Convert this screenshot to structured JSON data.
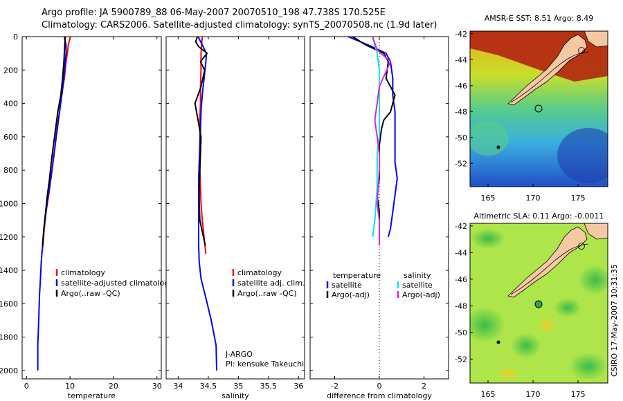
{
  "header": {
    "line1": "Argo profile: JA 5900789_88 06-May-2007 20070510_198 47.738S 170.525E",
    "line2": "Climatology: CARS2006. Satellite-adjusted climatology: synTS_20070508.nc (1.9d later)"
  },
  "side_stamp": "CSIRO 17-May-2007 10:31:35",
  "colors": {
    "clim": "#ff0000",
    "sat": "#0000ff",
    "argo": "#000000",
    "sat_sal": "#00e8e8",
    "argo_sal": "#e020e0"
  },
  "chart_data": [
    {
      "type": "line",
      "name": "temperature",
      "xlabel": "temperature",
      "xlim": [
        -1,
        31
      ],
      "ylim": [
        0,
        2050
      ],
      "xticks": [
        "0",
        "10",
        "20",
        "30"
      ],
      "xtick_values": [
        0,
        10,
        20,
        30
      ],
      "yticks": [
        "0",
        "200",
        "400",
        "600",
        "800",
        "1000",
        "1200",
        "1400",
        "1600",
        "1800",
        "2000"
      ],
      "ytick_values": [
        0,
        200,
        400,
        600,
        800,
        1000,
        1200,
        1400,
        1600,
        1800,
        2000
      ],
      "legend": [
        "climatology",
        "satellite-adjusted climatology",
        "Argo(..raw -QC)"
      ],
      "series": [
        {
          "name": "climatology",
          "color": "#ff0000",
          "x": [
            10.1,
            9.6,
            9.4,
            9.1,
            8.7,
            8.1,
            7.6,
            7.0,
            6.6,
            6.1,
            5.6,
            5.1,
            4.5,
            4.1,
            3.8,
            3.5
          ],
          "y": [
            0,
            50,
            100,
            150,
            250,
            350,
            450,
            550,
            650,
            750,
            850,
            950,
            1050,
            1150,
            1250,
            1300
          ]
        },
        {
          "name": "satellite",
          "color": "#0000ff",
          "x": [
            8.7,
            9.1,
            9.1,
            8.9,
            8.6,
            8.1,
            7.6,
            7.1,
            6.6,
            6.1,
            5.6,
            5.0,
            4.5,
            4.0,
            3.7,
            3.4,
            3.2,
            3.0,
            2.8,
            2.6,
            2.6
          ],
          "y": [
            0,
            50,
            100,
            150,
            250,
            350,
            450,
            550,
            650,
            750,
            850,
            950,
            1050,
            1150,
            1250,
            1350,
            1450,
            1550,
            1700,
            1850,
            2000
          ]
        },
        {
          "name": "argo",
          "color": "#000000",
          "x": [
            8.9,
            8.8,
            8.7,
            8.6,
            8.3,
            7.9,
            7.2,
            6.7,
            6.2,
            5.7,
            5.3,
            4.8,
            4.4,
            4.0,
            3.7
          ],
          "y": [
            0,
            50,
            100,
            150,
            250,
            350,
            450,
            550,
            650,
            750,
            850,
            950,
            1050,
            1150,
            1250
          ]
        }
      ]
    },
    {
      "type": "line",
      "name": "salinity",
      "xlabel": "salinity",
      "xlim": [
        33.8,
        36.1
      ],
      "ylim": [
        0,
        2050
      ],
      "xticks": [
        "34",
        "34.5",
        "35",
        "35.5",
        "36"
      ],
      "xtick_values": [
        34,
        34.5,
        35,
        35.5,
        36
      ],
      "legend": [
        "climatology",
        "satellite adj. clim.",
        "Argo(..raw -QC)"
      ],
      "annotation": [
        "J-ARGO",
        "PI: kensuke Takeuchi"
      ],
      "series": [
        {
          "name": "climatology",
          "color": "#ff0000",
          "x": [
            34.4,
            34.39,
            34.38,
            34.38,
            34.37,
            34.37,
            34.36,
            34.36,
            34.36,
            34.36,
            34.37,
            34.38,
            34.4,
            34.43,
            34.46
          ],
          "y": [
            0,
            50,
            100,
            200,
            300,
            400,
            500,
            600,
            700,
            800,
            900,
            1000,
            1100,
            1200,
            1300
          ]
        },
        {
          "name": "satellite",
          "color": "#0000ff",
          "x": [
            34.33,
            34.4,
            34.47,
            34.46,
            34.43,
            34.4,
            34.38,
            34.37,
            34.36,
            34.35,
            34.34,
            34.34,
            34.34,
            34.34,
            34.34,
            34.35,
            34.38,
            34.45,
            34.55,
            34.63,
            34.64
          ],
          "y": [
            0,
            50,
            100,
            150,
            250,
            350,
            450,
            550,
            650,
            750,
            850,
            950,
            1050,
            1150,
            1250,
            1350,
            1450,
            1550,
            1700,
            1850,
            2000
          ]
        },
        {
          "name": "argo",
          "color": "#000000",
          "x": [
            34.32,
            34.29,
            34.34,
            34.48,
            34.37,
            34.44,
            34.38,
            34.28,
            34.33,
            34.38,
            34.37,
            34.36,
            34.35,
            34.35,
            34.36,
            34.39,
            34.42,
            34.45
          ],
          "y": [
            0,
            30,
            60,
            100,
            150,
            200,
            300,
            400,
            500,
            600,
            700,
            800,
            900,
            1000,
            1100,
            1150,
            1200,
            1250
          ]
        }
      ]
    },
    {
      "type": "line",
      "name": "difference",
      "xlabel": "difference from climatology",
      "xlim": [
        -3.1,
        3.1
      ],
      "ylim": [
        0,
        2050
      ],
      "xticks": [
        "-2",
        "0",
        "2"
      ],
      "xtick_values": [
        -2,
        0,
        2
      ],
      "legend_left": [
        "temperature",
        "satellite",
        "Argo(-adj)"
      ],
      "legend_right": [
        "salinity",
        "satellite",
        "Argo(-adj)"
      ],
      "series": [
        {
          "name": "temperature satellite",
          "color": "#0000ff",
          "x": [
            -1.4,
            -0.5,
            0.3,
            0.5,
            0.6,
            0.6,
            0.7,
            0.7,
            0.7,
            0.7,
            0.8,
            0.7,
            0.6,
            0.5,
            0.4
          ],
          "y": [
            0,
            50,
            100,
            150,
            250,
            350,
            450,
            550,
            650,
            750,
            850,
            950,
            1050,
            1150,
            1200
          ]
        },
        {
          "name": "temperature argo",
          "color": "#000000",
          "x": [
            -1.2,
            -0.6,
            0.2,
            0.4,
            0.3,
            0.7,
            0.5,
            0.2,
            0.1,
            0.0,
            0.0,
            0.0,
            -0.1,
            0.0,
            0.0
          ],
          "y": [
            0,
            50,
            100,
            150,
            250,
            350,
            450,
            500,
            550,
            650,
            750,
            850,
            950,
            1050,
            1250
          ]
        },
        {
          "name": "salinity satellite",
          "color": "#00e8e8",
          "x": [
            -0.3,
            -0.1,
            0.0,
            0.0,
            0.0,
            0.0,
            0.0,
            -0.1,
            -0.1,
            -0.2,
            -0.3
          ],
          "y": [
            0,
            100,
            200,
            300,
            400,
            500,
            600,
            700,
            900,
            1100,
            1200
          ]
        },
        {
          "name": "salinity argo",
          "color": "#e020e0",
          "x": [
            -0.3,
            -0.1,
            0.5,
            0.0,
            -0.2,
            -0.1,
            0.0,
            0.0,
            -0.1,
            0.0,
            0.0
          ],
          "y": [
            0,
            80,
            150,
            300,
            500,
            600,
            700,
            800,
            1000,
            1100,
            1250
          ]
        }
      ]
    },
    {
      "type": "heatmap",
      "name": "sst_map",
      "title": "AMSR-E SST: 8.51 Argo: 8.49",
      "xticks": [
        "165",
        "170",
        "175"
      ],
      "xtick_values": [
        165,
        170,
        175
      ],
      "yticks": [
        "-42",
        "-44",
        "-46",
        "-48",
        "-50",
        "-52"
      ],
      "ytick_values": [
        -42,
        -44,
        -46,
        -48,
        -50,
        -52
      ],
      "xlim": [
        163,
        178.3
      ],
      "ylim": [
        -53.8,
        -41.8
      ]
    },
    {
      "type": "heatmap",
      "name": "sla_map",
      "title": "Altimetric SLA: 0.11 Argo: -0.0011",
      "xticks": [
        "165",
        "170",
        "175"
      ],
      "xtick_values": [
        165,
        170,
        175
      ],
      "yticks": [
        "-42",
        "-44",
        "-46",
        "-48",
        "-50",
        "-52"
      ],
      "ytick_values": [
        -42,
        -44,
        -46,
        -48,
        -50,
        -52
      ],
      "xlim": [
        163,
        178.3
      ],
      "ylim": [
        -53.8,
        -41.8
      ]
    }
  ]
}
